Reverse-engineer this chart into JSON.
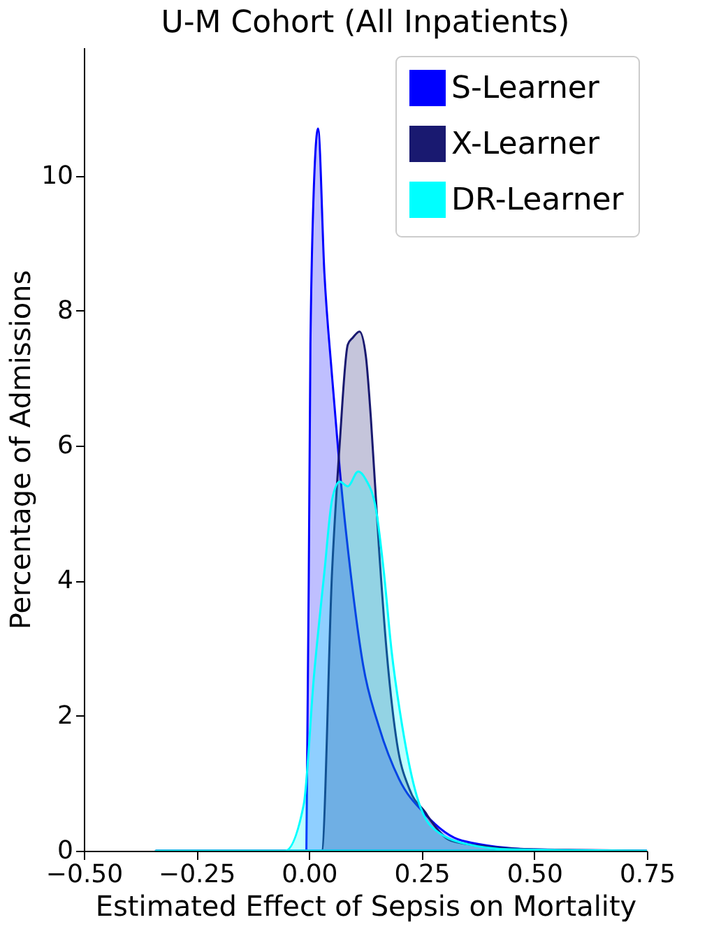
{
  "chart_data": {
    "type": "area",
    "title": "U-M Cohort (All Inpatients)",
    "xlabel": "Estimated Effect of Sepsis on Mortality",
    "ylabel": "Percentage of Admissions",
    "xlim": [
      -0.5,
      0.75
    ],
    "xticks": [
      {
        "value": -0.5,
        "label": "−0.50"
      },
      {
        "value": -0.25,
        "label": "−0.25"
      },
      {
        "value": 0,
        "label": "0.00"
      },
      {
        "value": 0.25,
        "label": "0.25"
      },
      {
        "value": 0.5,
        "label": "0.50"
      },
      {
        "value": 0.75,
        "label": "0.75"
      }
    ],
    "ylim": [
      0,
      11.9
    ],
    "yticks": [
      0,
      2,
      4,
      6,
      8,
      10
    ],
    "legend": "top right",
    "grid": false,
    "series": [
      {
        "name": "S-Learner",
        "color": "#0000ff",
        "x": [
          -0.34,
          -0.05,
          -0.006,
          0.003,
          0.009,
          0.02,
          0.034,
          0.051,
          0.068,
          0.092,
          0.12,
          0.155,
          0.2,
          0.258,
          0.34,
          0.5,
          0.75
        ],
        "values": [
          0,
          0,
          0,
          7.5,
          9.5,
          10.7,
          8.56,
          7.03,
          5.66,
          4.13,
          2.75,
          1.84,
          1.06,
          0.54,
          0.15,
          0.02,
          0
        ]
      },
      {
        "name": "X-Learner",
        "color": "#191970",
        "x": [
          -0.34,
          0.0,
          0.028,
          0.051,
          0.068,
          0.086,
          0.097,
          0.112,
          0.126,
          0.137,
          0.155,
          0.172,
          0.195,
          0.223,
          0.258,
          0.27,
          0.315,
          0.4,
          0.5,
          0.6,
          0.75
        ],
        "values": [
          0,
          0,
          0,
          4.13,
          6.03,
          7.5,
          7.6,
          7.69,
          7.33,
          6.43,
          4.5,
          2.97,
          1.6,
          0.91,
          0.57,
          0.45,
          0.15,
          0.06,
          0.02,
          0.01,
          0
        ]
      },
      {
        "name": "DR-Learner",
        "color": "#00ffff",
        "x": [
          -0.34,
          -0.053,
          -0.012,
          0.011,
          0.034,
          0.051,
          0.068,
          0.086,
          0.109,
          0.126,
          0.149,
          0.166,
          0.183,
          0.207,
          0.235,
          0.27,
          0.35,
          0.45,
          0.75
        ],
        "values": [
          0,
          0,
          0.68,
          2.6,
          4.13,
          5.2,
          5.47,
          5.4,
          5.62,
          5.5,
          5.04,
          4.13,
          2.97,
          1.84,
          0.91,
          0.37,
          0.1,
          0.02,
          0
        ]
      }
    ]
  }
}
